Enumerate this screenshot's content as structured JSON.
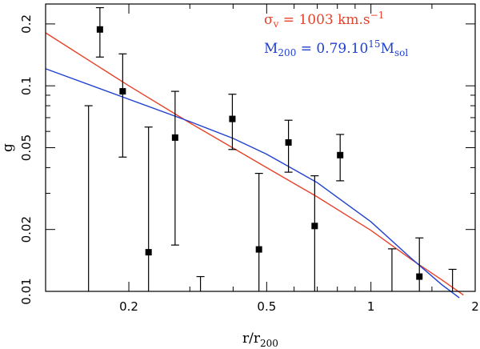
{
  "chart_data": {
    "type": "scatter",
    "title": "",
    "xlabel": "r/r200",
    "xlabel_parts": {
      "base": "r/r",
      "sub": "200"
    },
    "ylabel": "g",
    "xscale": "log",
    "yscale": "log",
    "xlim": [
      0.115,
      2.0
    ],
    "ylim": [
      0.01,
      0.25
    ],
    "x_tick_labels": [
      {
        "value": 0.2,
        "label": "0.2"
      },
      {
        "value": 0.5,
        "label": "0.5"
      },
      {
        "value": 1,
        "label": "1"
      },
      {
        "value": 2,
        "label": "2"
      }
    ],
    "x_minor_ticks": [
      0.3,
      0.4,
      0.6,
      0.7,
      0.8,
      0.9,
      1.5
    ],
    "y_tick_labels": [
      {
        "value": 0.01,
        "label": "0.01"
      },
      {
        "value": 0.02,
        "label": "0.02"
      },
      {
        "value": 0.05,
        "label": "0.05"
      },
      {
        "value": 0.1,
        "label": "0.1"
      },
      {
        "value": 0.2,
        "label": "0.2"
      }
    ],
    "y_minor_ticks": [
      0.03,
      0.04,
      0.06,
      0.07,
      0.08,
      0.09
    ],
    "points": [
      {
        "x": 0.153,
        "y": null,
        "err_low": 0.01,
        "err_high": 0.08
      },
      {
        "x": 0.165,
        "y": 0.188,
        "err_low": 0.138,
        "err_high": 0.24
      },
      {
        "x": 0.192,
        "y": 0.094,
        "err_low": 0.045,
        "err_high": 0.143
      },
      {
        "x": 0.228,
        "y": 0.0155,
        "err_low": 0.01,
        "err_high": 0.063
      },
      {
        "x": 0.272,
        "y": 0.056,
        "err_low": 0.0168,
        "err_high": 0.094
      },
      {
        "x": 0.322,
        "y": null,
        "err_low": 0.01,
        "err_high": 0.0118
      },
      {
        "x": 0.398,
        "y": 0.069,
        "err_low": 0.049,
        "err_high": 0.091
      },
      {
        "x": 0.475,
        "y": 0.016,
        "err_low": 0.01,
        "err_high": 0.0375
      },
      {
        "x": 0.578,
        "y": 0.053,
        "err_low": 0.038,
        "err_high": 0.068
      },
      {
        "x": 0.688,
        "y": 0.0208,
        "err_low": 0.01,
        "err_high": 0.0365
      },
      {
        "x": 0.815,
        "y": 0.046,
        "err_low": 0.0345,
        "err_high": 0.058
      },
      {
        "x": 1.15,
        "y": null,
        "err_low": 0.01,
        "err_high": 0.0161
      },
      {
        "x": 1.38,
        "y": 0.0118,
        "err_low": 0.01,
        "err_high": 0.0182
      },
      {
        "x": 1.72,
        "y": null,
        "err_low": 0.01,
        "err_high": 0.0128
      }
    ],
    "series": [
      {
        "name": "sigma_v = 1003 km.s^-1",
        "color": "#e8412a",
        "x": [
          0.115,
          0.2,
          0.3,
          0.5,
          0.7,
          1.0,
          1.3,
          1.6,
          1.85
        ],
        "y": [
          0.181,
          0.1,
          0.066,
          0.04,
          0.0288,
          0.0198,
          0.0144,
          0.0114,
          0.0096
        ]
      },
      {
        "name": "M200 = 0.79.10^15 Msol",
        "color": "#2040d0",
        "x": [
          0.115,
          0.2,
          0.3,
          0.4,
          0.5,
          0.7,
          1.0,
          1.3,
          1.6,
          1.8
        ],
        "y": [
          0.121,
          0.086,
          0.067,
          0.0555,
          0.0465,
          0.0338,
          0.0218,
          0.0146,
          0.0108,
          0.0093
        ]
      }
    ],
    "legend": {
      "position": "top-right",
      "entries": [
        {
          "sym": "σ",
          "sub": "v",
          "rest": " = 1003 km.s",
          "sup": "−1",
          "color": "#e8412a"
        },
        {
          "sym": "M",
          "sub": "200",
          "rest": " = 0.79.10",
          "sup": "15",
          "tail": "M",
          "tail_sub": "sol",
          "color": "#2040d0"
        }
      ]
    }
  }
}
